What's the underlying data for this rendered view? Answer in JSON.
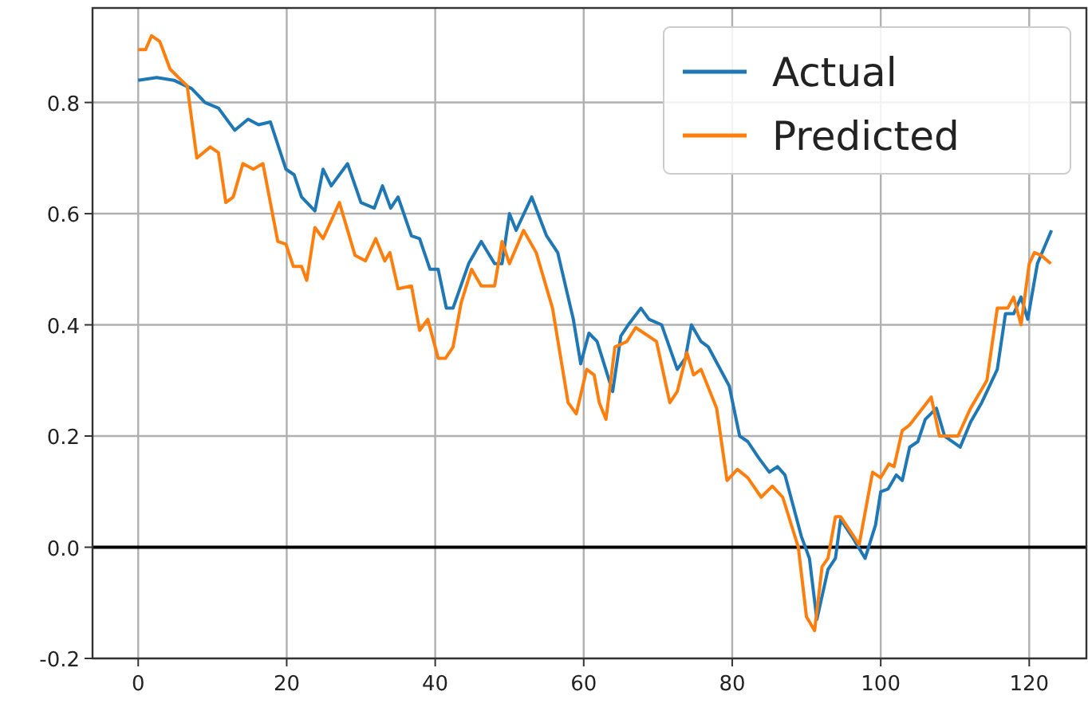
{
  "chart_data": {
    "type": "line",
    "series": [
      {
        "name": "Actual",
        "color": "#1f77b4",
        "x": [
          0,
          2.5,
          4.8,
          7.2,
          9,
          10.8,
          13,
          14.8,
          16.2,
          17.8,
          19.9,
          21,
          22,
          23.8,
          24.9,
          26,
          28.2,
          30,
          31.8,
          32.9,
          34,
          35,
          36.8,
          37.9,
          39.3,
          40.4,
          41.5,
          42.4,
          44.5,
          46.2,
          48,
          49,
          50,
          50.9,
          53,
          55,
          56.5,
          58.6,
          59.6,
          60.7,
          61.8,
          63.9,
          65,
          66,
          67.7,
          68.8,
          70.5,
          72.6,
          73.7,
          74.5,
          75.8,
          76.8,
          79.6,
          81,
          82.1,
          83.6,
          85,
          86.1,
          87.1,
          89.3,
          90.4,
          91.4,
          92.9,
          93.9,
          94.6,
          96.1,
          97.9,
          99.3,
          100,
          101,
          102.1,
          102.9,
          103.9,
          105,
          106,
          107.5,
          108.6,
          110.7,
          112.1,
          113.6,
          115.7,
          116.8,
          117.9,
          118.9,
          119.8,
          121.1,
          123
        ],
        "values": [
          0.84,
          0.845,
          0.84,
          0.825,
          0.8,
          0.79,
          0.75,
          0.77,
          0.76,
          0.765,
          0.68,
          0.67,
          0.63,
          0.605,
          0.68,
          0.65,
          0.69,
          0.62,
          0.61,
          0.65,
          0.61,
          0.63,
          0.56,
          0.555,
          0.5,
          0.5,
          0.43,
          0.43,
          0.51,
          0.55,
          0.51,
          0.51,
          0.6,
          0.57,
          0.63,
          0.56,
          0.53,
          0.41,
          0.33,
          0.385,
          0.37,
          0.28,
          0.38,
          0.4,
          0.43,
          0.41,
          0.4,
          0.32,
          0.34,
          0.4,
          0.37,
          0.36,
          0.29,
          0.2,
          0.19,
          0.16,
          0.135,
          0.145,
          0.13,
          0.02,
          -0.02,
          -0.13,
          -0.04,
          -0.02,
          0.05,
          0.02,
          -0.02,
          0.04,
          0.1,
          0.105,
          0.13,
          0.12,
          0.18,
          0.19,
          0.23,
          0.25,
          0.2,
          0.18,
          0.225,
          0.26,
          0.32,
          0.42,
          0.42,
          0.45,
          0.41,
          0.51,
          0.57
        ]
      },
      {
        "name": "Predicted",
        "color": "#ff7f0e",
        "x": [
          0,
          1,
          1.8,
          2.9,
          4.3,
          5.8,
          6.6,
          7.9,
          9.7,
          10.8,
          11.8,
          12.8,
          14.1,
          15.5,
          16.8,
          18.8,
          19.9,
          20.9,
          22,
          22.7,
          23.8,
          24.9,
          27.1,
          29.2,
          30.6,
          32,
          33.2,
          33.9,
          35,
          36.8,
          37.9,
          39,
          40.4,
          41.4,
          42.4,
          43.5,
          44.9,
          46.2,
          48,
          49,
          50,
          51.9,
          53.6,
          55.8,
          57.9,
          59,
          60.4,
          61.4,
          62.1,
          63,
          64.2,
          65.8,
          67,
          69.8,
          71.6,
          72.6,
          73.9,
          74.8,
          75.8,
          77.9,
          79.3,
          80.7,
          82.1,
          83.9,
          85.4,
          86.8,
          88.9,
          90,
          91.1,
          92.1,
          92.9,
          93.9,
          94.6,
          97.1,
          98.9,
          100,
          101.1,
          101.8,
          102.9,
          103.9,
          106.8,
          107.9,
          110.4,
          112.1,
          114.3,
          115.7,
          117.1,
          117.9,
          118.9,
          120,
          120.7,
          121.6,
          122.9
        ],
        "values": [
          0.895,
          0.895,
          0.92,
          0.91,
          0.86,
          0.84,
          0.83,
          0.7,
          0.72,
          0.71,
          0.62,
          0.63,
          0.69,
          0.68,
          0.69,
          0.55,
          0.545,
          0.505,
          0.505,
          0.48,
          0.575,
          0.555,
          0.62,
          0.525,
          0.515,
          0.555,
          0.515,
          0.53,
          0.465,
          0.47,
          0.39,
          0.41,
          0.34,
          0.34,
          0.36,
          0.44,
          0.5,
          0.47,
          0.47,
          0.55,
          0.51,
          0.57,
          0.53,
          0.43,
          0.26,
          0.24,
          0.32,
          0.31,
          0.26,
          0.23,
          0.36,
          0.37,
          0.395,
          0.37,
          0.26,
          0.28,
          0.35,
          0.31,
          0.32,
          0.25,
          0.12,
          0.14,
          0.125,
          0.09,
          0.11,
          0.09,
          0.0,
          -0.125,
          -0.15,
          -0.035,
          -0.02,
          0.055,
          0.055,
          0.005,
          0.135,
          0.125,
          0.15,
          0.145,
          0.21,
          0.22,
          0.27,
          0.2,
          0.2,
          0.25,
          0.3,
          0.43,
          0.43,
          0.45,
          0.4,
          0.51,
          0.53,
          0.525,
          0.51
        ]
      }
    ],
    "xlim": [
      -6.15,
      127.7
    ],
    "xticks": [
      0,
      20,
      40,
      60,
      80,
      100,
      120
    ],
    "ylim": [
      -0.2,
      0.97
    ],
    "yticks": [
      {
        "value": -0.2,
        "label": "-0.2"
      },
      {
        "value": 0,
        "label": "0.0"
      },
      {
        "value": 0.2,
        "label": "0.2"
      },
      {
        "value": 0.4,
        "label": "0.4"
      },
      {
        "value": 0.6,
        "label": "0.6"
      },
      {
        "value": 0.8,
        "label": "0.8"
      }
    ],
    "ref_lines": [
      {
        "axis": "y",
        "value": 0,
        "color": "#000000"
      }
    ],
    "grid": true,
    "legend": "top right"
  }
}
